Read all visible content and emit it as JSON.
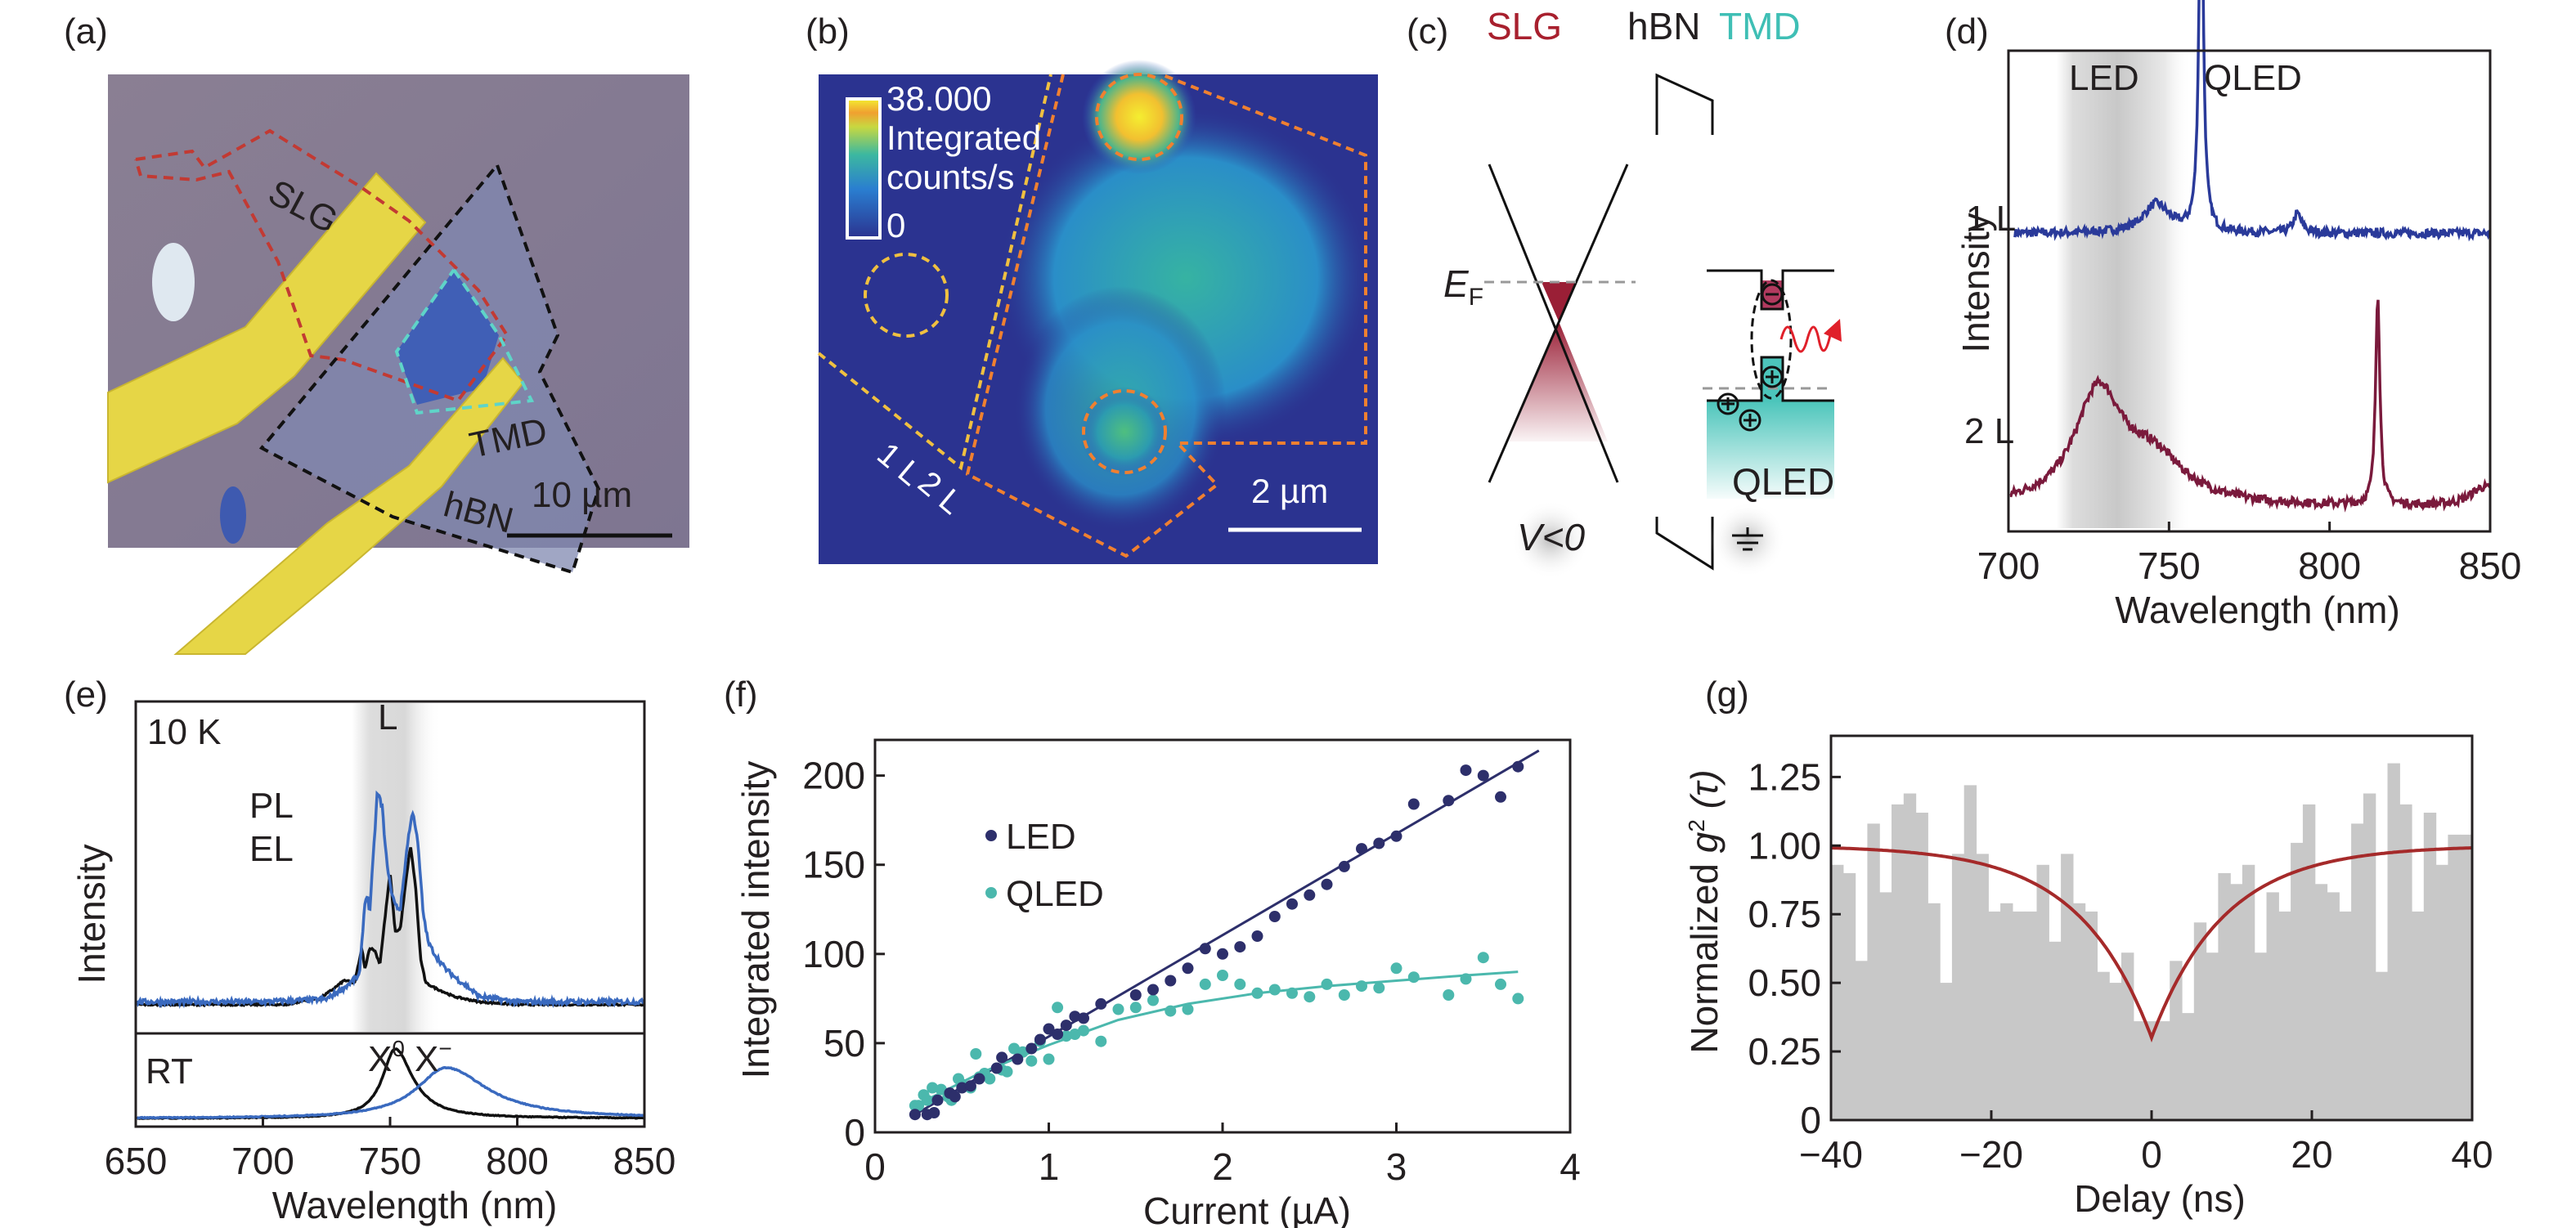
{
  "panels": {
    "a": {
      "label": "(a)",
      "annotations": {
        "slg": "SLG",
        "tmd": "TMD",
        "hbn": "hBN"
      },
      "scalebar": "10 µm",
      "colors": {
        "substrate": "#857b8f",
        "electrode": "#e8d84a",
        "slg_outline": "#c0302a",
        "hbn_outline": "#111111",
        "tmd_outline": "#5fd4c8"
      }
    },
    "b": {
      "label": "(b)",
      "colorbar": {
        "max": "38.000",
        "title_line1": "Integrated",
        "title_line2": "counts/s",
        "min": "0"
      },
      "layer_labels": {
        "one": "1 L",
        "two": "2 L"
      },
      "scalebar": "2 µm",
      "colors": {
        "bg": "#2b3390",
        "outline_1L": "#f0c040",
        "outline_2L": "#f08030"
      }
    },
    "c": {
      "label": "(c)",
      "headers": {
        "slg": "SLG",
        "hbn": "hBN",
        "tmd": "TMD"
      },
      "fermi_label": "E",
      "fermi_sub": "F",
      "bias_label": "V<0",
      "device_label": "QLED",
      "colors": {
        "slg": "#a8202e",
        "tmd": "#3fbfb5",
        "photon": "#e0202a"
      }
    },
    "d": {
      "label": "(d)",
      "regions": {
        "led": "LED",
        "qled": "QLED"
      },
      "trace_labels": {
        "one": "1 L",
        "two": "2 L"
      }
    },
    "e": {
      "label": "(e)",
      "top_label": "10 K",
      "band_label": "L",
      "legend": {
        "pl": "PL",
        "el": "EL"
      },
      "bottom_label": "RT",
      "peak_labels": {
        "x0": "X",
        "x0_sup": "0",
        "xm": "X",
        "xm_sup": "−"
      }
    },
    "f": {
      "label": "(f)"
    },
    "g": {
      "label": "(g)"
    }
  },
  "chart_data": [
    {
      "id": "d",
      "type": "line",
      "title": "",
      "xlabel": "Wavelength (nm)",
      "ylabel": "Intensity",
      "xlim": [
        700,
        850
      ],
      "xticks": [
        "700",
        "750",
        "800",
        "850"
      ],
      "shaded_region": {
        "from": 715,
        "to": 757,
        "label": "LED"
      },
      "series": [
        {
          "name": "1 L",
          "color": "#2a3a9a",
          "baseline": 0.62,
          "features": [
            {
              "center": 746,
              "height": 0.06,
              "width": 5
            },
            {
              "center": 760,
              "height": 0.82,
              "width": 0.8
            },
            {
              "center": 790,
              "height": 0.04,
              "width": 1.5
            }
          ]
        },
        {
          "name": "2 L",
          "color": "#7a1a3c",
          "baseline": 0.05,
          "features": [
            {
              "center": 728,
              "height": 0.23,
              "width": 9
            },
            {
              "center": 745,
              "height": 0.09,
              "width": 12
            },
            {
              "center": 815,
              "height": 0.44,
              "width": 0.8
            },
            {
              "center": 848,
              "height": 0.04,
              "width": 5
            }
          ]
        }
      ]
    },
    {
      "id": "e",
      "type": "line",
      "xlabel": "Wavelength (nm)",
      "ylabel": "Intensity",
      "xlim": [
        650,
        850
      ],
      "xticks": [
        "650",
        "700",
        "750",
        "800",
        "850"
      ],
      "shaded_region": {
        "from": 735,
        "to": 770,
        "label": "L"
      },
      "top": {
        "label": "10 K",
        "series": [
          {
            "name": "PL",
            "color": "#3a6abf",
            "points": [
              [
                650,
                0.02
              ],
              [
                700,
                0.02
              ],
              [
                725,
                0.03
              ],
              [
                733,
                0.08
              ],
              [
                738,
                0.12
              ],
              [
                740,
                0.38
              ],
              [
                741,
                0.42
              ],
              [
                742,
                0.35
              ],
              [
                745,
                0.8
              ],
              [
                747,
                0.74
              ],
              [
                748,
                0.6
              ],
              [
                750,
                0.45
              ],
              [
                752,
                0.38
              ],
              [
                754,
                0.36
              ],
              [
                757,
                0.62
              ],
              [
                759,
                0.73
              ],
              [
                761,
                0.6
              ],
              [
                763,
                0.35
              ],
              [
                765,
                0.24
              ],
              [
                768,
                0.19
              ],
              [
                772,
                0.14
              ],
              [
                777,
                0.1
              ],
              [
                780,
                0.08
              ],
              [
                785,
                0.04
              ],
              [
                800,
                0.02
              ],
              [
                850,
                0.02
              ]
            ]
          },
          {
            "name": "EL",
            "color": "#111111",
            "points": [
              [
                650,
                0.01
              ],
              [
                710,
                0.01
              ],
              [
                718,
                0.03
              ],
              [
                722,
                0.03
              ],
              [
                728,
                0.07
              ],
              [
                732,
                0.1
              ],
              [
                736,
                0.09
              ],
              [
                739,
                0.22
              ],
              [
                740,
                0.14
              ],
              [
                742,
                0.22
              ],
              [
                744,
                0.21
              ],
              [
                746,
                0.16
              ],
              [
                748,
                0.33
              ],
              [
                750,
                0.5
              ],
              [
                752,
                0.28
              ],
              [
                754,
                0.29
              ],
              [
                756,
                0.45
              ],
              [
                758,
                0.6
              ],
              [
                760,
                0.45
              ],
              [
                762,
                0.18
              ],
              [
                764,
                0.09
              ],
              [
                768,
                0.07
              ],
              [
                775,
                0.04
              ],
              [
                785,
                0.02
              ],
              [
                800,
                0.01
              ],
              [
                850,
                0.01
              ]
            ]
          }
        ]
      },
      "bottom": {
        "label": "RT",
        "series": [
          {
            "name": "X0",
            "color": "#111111",
            "center": 752,
            "height": 0.85,
            "width": 12
          },
          {
            "name": "X-",
            "color": "#3a6abf",
            "center": 772,
            "height": 0.62,
            "width": 28
          }
        ]
      }
    },
    {
      "id": "f",
      "type": "scatter",
      "xlabel": "Current (µA)",
      "ylabel": "Integrated intensity",
      "xlim": [
        0,
        4
      ],
      "ylim": [
        0,
        220
      ],
      "xticks": [
        "0",
        "1",
        "2",
        "3",
        "4"
      ],
      "yticks": [
        "0",
        "50",
        "100",
        "150",
        "200"
      ],
      "legend_position": "top-left",
      "series": [
        {
          "name": "LED",
          "color": "#2d2f6b",
          "points": [
            [
              0.23,
              10
            ],
            [
              0.3,
              10
            ],
            [
              0.34,
              11
            ],
            [
              0.36,
              18
            ],
            [
              0.43,
              22
            ],
            [
              0.46,
              20
            ],
            [
              0.5,
              25
            ],
            [
              0.55,
              26
            ],
            [
              0.6,
              30
            ],
            [
              0.7,
              36
            ],
            [
              0.73,
              42
            ],
            [
              0.82,
              41
            ],
            [
              0.9,
              47
            ],
            [
              0.95,
              52
            ],
            [
              1.0,
              58
            ],
            [
              1.05,
              55
            ],
            [
              1.1,
              60
            ],
            [
              1.15,
              65
            ],
            [
              1.2,
              64
            ],
            [
              1.3,
              72
            ],
            [
              1.5,
              77
            ],
            [
              1.6,
              80
            ],
            [
              1.7,
              85
            ],
            [
              1.8,
              92
            ],
            [
              1.9,
              103
            ],
            [
              2.0,
              100
            ],
            [
              2.1,
              104
            ],
            [
              2.2,
              110
            ],
            [
              2.3,
              121
            ],
            [
              2.4,
              128
            ],
            [
              2.5,
              133
            ],
            [
              2.6,
              139
            ],
            [
              2.7,
              149
            ],
            [
              2.8,
              159
            ],
            [
              2.9,
              162
            ],
            [
              3.0,
              166
            ],
            [
              3.1,
              184
            ],
            [
              3.3,
              186
            ],
            [
              3.4,
              203
            ],
            [
              3.5,
              200
            ],
            [
              3.6,
              188
            ],
            [
              3.7,
              205
            ]
          ],
          "fit": [
            [
              0.23,
              10
            ],
            [
              3.82,
              214
            ]
          ]
        },
        {
          "name": "QLED",
          "color": "#4bb8ad",
          "points": [
            [
              0.23,
              15
            ],
            [
              0.25,
              15
            ],
            [
              0.28,
              21
            ],
            [
              0.3,
              18
            ],
            [
              0.33,
              25
            ],
            [
              0.38,
              24
            ],
            [
              0.42,
              20
            ],
            [
              0.44,
              18
            ],
            [
              0.48,
              30
            ],
            [
              0.5,
              27
            ],
            [
              0.55,
              25
            ],
            [
              0.58,
              44
            ],
            [
              0.6,
              31
            ],
            [
              0.63,
              33
            ],
            [
              0.66,
              30
            ],
            [
              0.7,
              36
            ],
            [
              0.73,
              35
            ],
            [
              0.76,
              34
            ],
            [
              0.8,
              47
            ],
            [
              0.85,
              45
            ],
            [
              0.9,
              40
            ],
            [
              0.95,
              51
            ],
            [
              1.0,
              41
            ],
            [
              1.05,
              70
            ],
            [
              1.1,
              54
            ],
            [
              1.15,
              55
            ],
            [
              1.2,
              57
            ],
            [
              1.3,
              51
            ],
            [
              1.4,
              69
            ],
            [
              1.5,
              70
            ],
            [
              1.6,
              74
            ],
            [
              1.7,
              68
            ],
            [
              1.8,
              69
            ],
            [
              1.9,
              83
            ],
            [
              2.0,
              88
            ],
            [
              2.1,
              83
            ],
            [
              2.2,
              78
            ],
            [
              2.3,
              80
            ],
            [
              2.4,
              78
            ],
            [
              2.5,
              76
            ],
            [
              2.6,
              83
            ],
            [
              2.7,
              77
            ],
            [
              2.8,
              82
            ],
            [
              2.9,
              81
            ],
            [
              3.0,
              92
            ],
            [
              3.1,
              87
            ],
            [
              3.3,
              77
            ],
            [
              3.4,
              86
            ],
            [
              3.5,
              98
            ],
            [
              3.6,
              83
            ],
            [
              3.7,
              75
            ]
          ],
          "fit": [
            [
              0.23,
              15
            ],
            [
              0.6,
              33
            ],
            [
              1.0,
              49
            ],
            [
              1.4,
              63
            ],
            [
              1.8,
              72
            ],
            [
              2.2,
              78
            ],
            [
              2.6,
              82
            ],
            [
              3.0,
              85
            ],
            [
              3.4,
              88
            ],
            [
              3.7,
              90
            ]
          ]
        }
      ]
    },
    {
      "id": "g",
      "type": "bar",
      "xlabel": "Delay (ns)",
      "ylabel": "Normalized g² (τ)",
      "ylabel_parts": {
        "pre": "Normalized ",
        "g": "g",
        "sup": "2",
        "post": " (τ)"
      },
      "xlim": [
        -40,
        40
      ],
      "ylim": [
        0,
        1.4
      ],
      "xticks": [
        "−40",
        "−20",
        "0",
        "20",
        "40"
      ],
      "yticks": [
        "0",
        "0.25",
        "0.50",
        "0.75",
        "1.00",
        "1.25"
      ],
      "bin_width_ns": 1.5,
      "values": [
        0.93,
        0.9,
        0.58,
        1.08,
        0.83,
        1.15,
        1.19,
        1.12,
        0.79,
        0.5,
        0.97,
        1.22,
        0.97,
        0.76,
        0.79,
        0.76,
        0.76,
        0.93,
        0.65,
        0.97,
        0.79,
        0.76,
        0.54,
        0.5,
        0.61,
        0.36,
        0.36,
        0.36,
        0.58,
        0.39,
        0.72,
        0.61,
        0.9,
        0.86,
        0.93,
        0.61,
        0.83,
        0.76,
        1.01,
        1.15,
        0.86,
        0.83,
        0.76,
        1.08,
        1.19,
        0.54,
        1.3,
        1.15,
        0.76,
        1.12,
        0.93,
        1.04,
        1.04
      ],
      "fit": {
        "type": "antibunching",
        "g0": 0.3,
        "tau_ns": 9,
        "color": "#a52a2a"
      }
    }
  ]
}
